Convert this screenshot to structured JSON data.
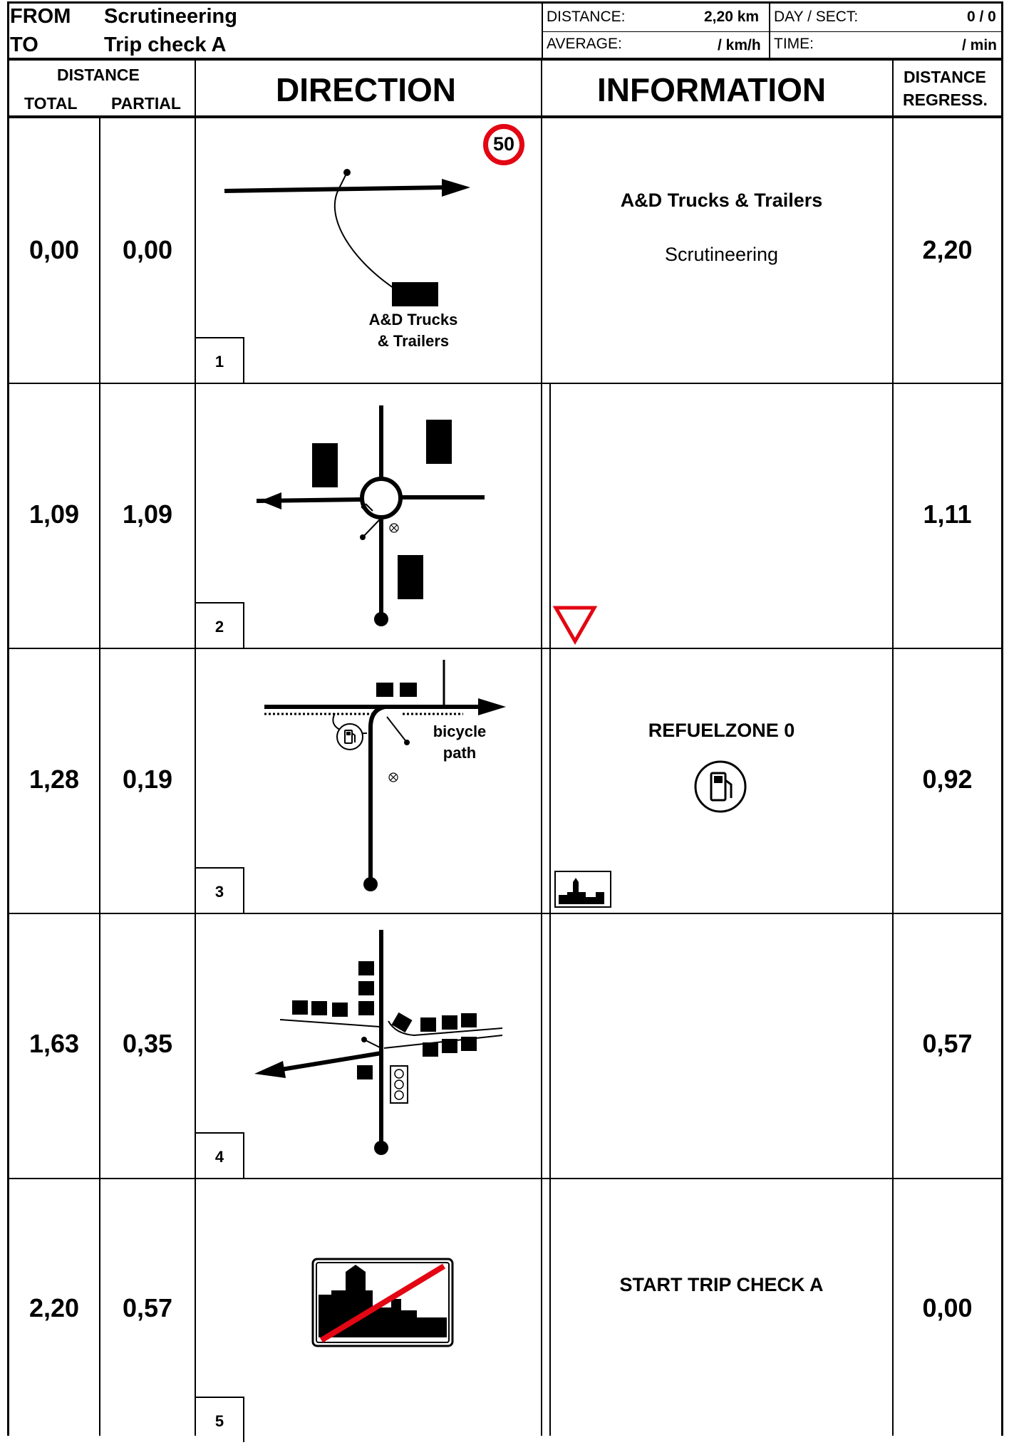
{
  "header": {
    "from_label": "FROM",
    "from_value": "Scrutineering",
    "to_label": "TO",
    "to_value": "Trip check A",
    "distance_label": "DISTANCE:",
    "distance_value": "2,20 km",
    "average_label": "AVERAGE:",
    "average_value": "/ km/h",
    "day_sect_label": "DAY / SECT:",
    "day_sect_value": "0 / 0",
    "time_label": "TIME:",
    "time_value": "/ min"
  },
  "columns": {
    "distance": "DISTANCE",
    "total": "TOTAL",
    "partial": "PARTIAL",
    "direction": "DIRECTION",
    "information": "INFORMATION",
    "regress_line1": "DISTANCE",
    "regress_line2": "REGRESS."
  },
  "rows": [
    {
      "num": "1",
      "total": "0,00",
      "partial": "0,00",
      "info_title": "A&D Trucks & Trailers",
      "info_sub": "Scrutineering",
      "regress": "2,20",
      "diagram_label_1": "A&D Trucks",
      "diagram_label_2": "& Trailers",
      "speed_sign": "50"
    },
    {
      "num": "2",
      "total": "1,09",
      "partial": "1,09",
      "info_title": "",
      "info_sub": "",
      "regress": "1,11"
    },
    {
      "num": "3",
      "total": "1,28",
      "partial": "0,19",
      "info_title": "REFUELZONE 0",
      "info_sub": "",
      "regress": "0,92",
      "diagram_label_1": "bicycle",
      "diagram_label_2": "path"
    },
    {
      "num": "4",
      "total": "1,63",
      "partial": "0,35",
      "info_title": "",
      "info_sub": "",
      "regress": "0,57"
    },
    {
      "num": "5",
      "total": "2,20",
      "partial": "0,57",
      "info_title": "START TRIP CHECK A",
      "info_sub": "",
      "regress": "0,00"
    }
  ],
  "colors": {
    "sign_red": "#e30613",
    "ink": "#000000"
  },
  "icons": [
    "speed-limit-50-icon",
    "building-icon",
    "give-way-icon",
    "fuel-pump-icon",
    "town-entry-sign-icon",
    "traffic-light-icon",
    "town-exit-sign-icon",
    "no-entry-circle-icon"
  ]
}
